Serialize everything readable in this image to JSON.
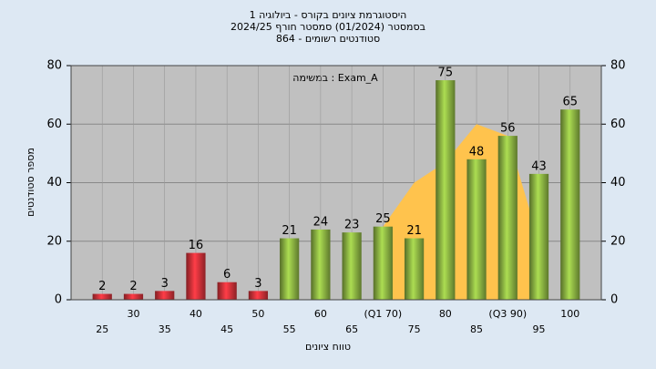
{
  "chart_data": {
    "type": "bar",
    "title": "היסטוגרמת ציונים בקורס - ביולוגיה 1",
    "subtitle": "בסמסטר  (01/2024)  סמסטר חורף 2024/25",
    "subtitle2": "סטודנטים רשומים - 864",
    "annotation": "Exam_A : במשימה",
    "xlabel": "טווח ציונים",
    "ylabel": "מספר סטודנטים",
    "categories": [
      "25",
      "30",
      "35",
      "40",
      "45",
      "50",
      "55",
      "60",
      "65",
      "(Q1 70)",
      "75",
      "80",
      "85",
      "(Q3 90)",
      "95",
      "100"
    ],
    "values": [
      2,
      2,
      3,
      16,
      6,
      3,
      21,
      24,
      23,
      25,
      21,
      75,
      48,
      56,
      43,
      65
    ],
    "colors": [
      "#d8333b",
      "#d8333b",
      "#d8333b",
      "#d8333b",
      "#d8333b",
      "#d8333b",
      "#8fb844",
      "#8fb844",
      "#8fb844",
      "#8fb844",
      "#8fb844",
      "#8fb844",
      "#8fb844",
      "#8fb844",
      "#8fb844",
      "#8fb844"
    ],
    "area": {
      "color": "#ffc34d",
      "values": [
        null,
        null,
        null,
        null,
        null,
        null,
        null,
        null,
        null,
        25,
        40,
        47,
        60,
        56,
        20,
        null
      ]
    },
    "ylim": [
      0,
      80
    ],
    "yticks": [
      0,
      20,
      40,
      60,
      80
    ],
    "y2lim": [
      0,
      80
    ],
    "y2ticks": [
      0,
      20,
      40,
      60,
      80
    ],
    "grid": true
  }
}
